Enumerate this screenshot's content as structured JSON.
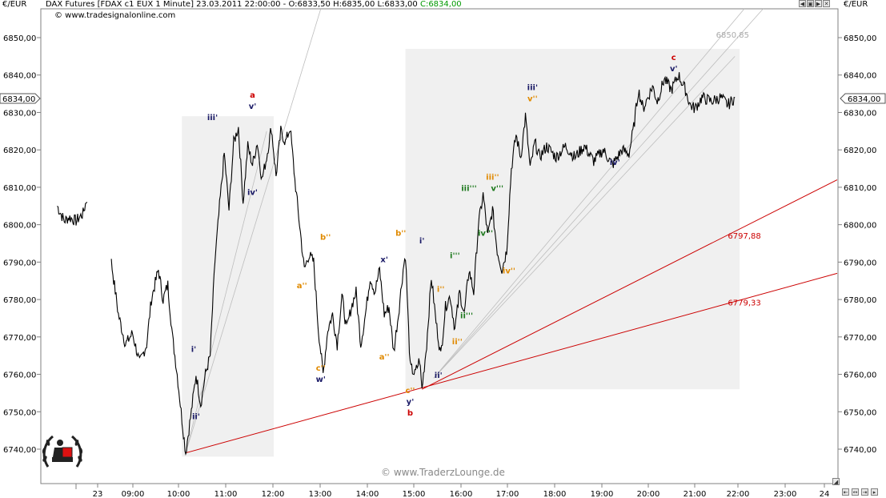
{
  "header": {
    "currency": "€/EUR",
    "instrument": "DAX Futures [FDAX c1 EUX  1 Minute] 23.03.2011 22:00:00 - O:6833,50 H:6835,00 L:6833,00",
    "close_text": "C:6834,00",
    "website": "© www.tradesignalonline.com",
    "currency_right": "€/EUR"
  },
  "watermark": "© www.TraderzLounge.de",
  "colors": {
    "price": "#000000",
    "trendline": "#cc0000",
    "fan": "#bdbdbd",
    "box": "#f0f0f0",
    "close_green": "#009900",
    "wave_orange": "#e08a00",
    "wave_navy": "#1a1a66",
    "wave_red": "#cc0000",
    "wave_green": "#1f7a1f"
  },
  "chart_data": {
    "type": "line",
    "y_axis_labels": [
      "6740,00",
      "6750,00",
      "6760,00",
      "6770,00",
      "6780,00",
      "6790,00",
      "6800,00",
      "6810,00",
      "6820,00",
      "6830,00",
      "6840,00",
      "6850,00"
    ],
    "x_axis_labels": [
      "23",
      "09:00",
      "10:00",
      "11:00",
      "12:00",
      "13:00",
      "14:00",
      "15:00",
      "16:00",
      "17:00",
      "18:00",
      "19:00",
      "20:00",
      "21:00",
      "22:00",
      "23:00",
      "24"
    ],
    "ylim": [
      6733,
      6860
    ],
    "last_price_label": "6834,00",
    "price_series": [
      {
        "t": 7.6,
        "p": 6805
      },
      {
        "t": 7.75,
        "p": 6801
      },
      {
        "t": 7.85,
        "p": 6802
      },
      {
        "t": 8.0,
        "p": 6801
      },
      {
        "t": 8.15,
        "p": 6803
      },
      {
        "t": 8.25,
        "p": 6808
      },
      {
        "t": 8.75,
        "p": 6790
      },
      {
        "t": 8.9,
        "p": 6776
      },
      {
        "t": 9.05,
        "p": 6768
      },
      {
        "t": 9.2,
        "p": 6771
      },
      {
        "t": 9.35,
        "p": 6763
      },
      {
        "t": 9.5,
        "p": 6768
      },
      {
        "t": 9.6,
        "p": 6780
      },
      {
        "t": 9.75,
        "p": 6788
      },
      {
        "t": 9.85,
        "p": 6780
      },
      {
        "t": 9.95,
        "p": 6784
      },
      {
        "t": 10.05,
        "p": 6770
      },
      {
        "t": 10.15,
        "p": 6760
      },
      {
        "t": 10.25,
        "p": 6748
      },
      {
        "t": 10.33,
        "p": 6739
      },
      {
        "t": 10.45,
        "p": 6750
      },
      {
        "t": 10.55,
        "p": 6760
      },
      {
        "t": 10.65,
        "p": 6752
      },
      {
        "t": 10.75,
        "p": 6760
      },
      {
        "t": 10.85,
        "p": 6765
      },
      {
        "t": 10.95,
        "p": 6790
      },
      {
        "t": 11.05,
        "p": 6805
      },
      {
        "t": 11.15,
        "p": 6819
      },
      {
        "t": 11.25,
        "p": 6804
      },
      {
        "t": 11.35,
        "p": 6822
      },
      {
        "t": 11.45,
        "p": 6826
      },
      {
        "t": 11.55,
        "p": 6806
      },
      {
        "t": 11.65,
        "p": 6821
      },
      {
        "t": 11.75,
        "p": 6816
      },
      {
        "t": 11.85,
        "p": 6822
      },
      {
        "t": 11.95,
        "p": 6812
      },
      {
        "t": 12.05,
        "p": 6818
      },
      {
        "t": 12.15,
        "p": 6826
      },
      {
        "t": 12.25,
        "p": 6813
      },
      {
        "t": 12.35,
        "p": 6825
      },
      {
        "t": 12.45,
        "p": 6822
      },
      {
        "t": 12.55,
        "p": 6826
      },
      {
        "t": 12.65,
        "p": 6812
      },
      {
        "t": 12.75,
        "p": 6800
      },
      {
        "t": 12.85,
        "p": 6788
      },
      {
        "t": 12.95,
        "p": 6792
      },
      {
        "t": 13.05,
        "p": 6790
      },
      {
        "t": 13.15,
        "p": 6772
      },
      {
        "t": 13.25,
        "p": 6760
      },
      {
        "t": 13.35,
        "p": 6772
      },
      {
        "t": 13.45,
        "p": 6776
      },
      {
        "t": 13.55,
        "p": 6768
      },
      {
        "t": 13.65,
        "p": 6781
      },
      {
        "t": 13.75,
        "p": 6772
      },
      {
        "t": 13.85,
        "p": 6778
      },
      {
        "t": 13.95,
        "p": 6782
      },
      {
        "t": 14.05,
        "p": 6768
      },
      {
        "t": 14.15,
        "p": 6776
      },
      {
        "t": 14.25,
        "p": 6786
      },
      {
        "t": 14.35,
        "p": 6782
      },
      {
        "t": 14.45,
        "p": 6788
      },
      {
        "t": 14.55,
        "p": 6776
      },
      {
        "t": 14.65,
        "p": 6778
      },
      {
        "t": 14.75,
        "p": 6766
      },
      {
        "t": 14.85,
        "p": 6776
      },
      {
        "t": 14.95,
        "p": 6788
      },
      {
        "t": 15.0,
        "p": 6792
      },
      {
        "t": 15.1,
        "p": 6762
      },
      {
        "t": 15.2,
        "p": 6760
      },
      {
        "t": 15.3,
        "p": 6764
      },
      {
        "t": 15.35,
        "p": 6756
      },
      {
        "t": 15.45,
        "p": 6768
      },
      {
        "t": 15.55,
        "p": 6786
      },
      {
        "t": 15.65,
        "p": 6774
      },
      {
        "t": 15.75,
        "p": 6765
      },
      {
        "t": 15.85,
        "p": 6778
      },
      {
        "t": 15.95,
        "p": 6781
      },
      {
        "t": 16.05,
        "p": 6772
      },
      {
        "t": 16.15,
        "p": 6782
      },
      {
        "t": 16.25,
        "p": 6776
      },
      {
        "t": 16.35,
        "p": 6788
      },
      {
        "t": 16.45,
        "p": 6782
      },
      {
        "t": 16.55,
        "p": 6800
      },
      {
        "t": 16.65,
        "p": 6808
      },
      {
        "t": 16.75,
        "p": 6797
      },
      {
        "t": 16.85,
        "p": 6804
      },
      {
        "t": 16.95,
        "p": 6793
      },
      {
        "t": 17.05,
        "p": 6788
      },
      {
        "t": 17.15,
        "p": 6793
      },
      {
        "t": 17.25,
        "p": 6815
      },
      {
        "t": 17.35,
        "p": 6824
      },
      {
        "t": 17.45,
        "p": 6818
      },
      {
        "t": 17.55,
        "p": 6829
      },
      {
        "t": 17.65,
        "p": 6815
      },
      {
        "t": 17.75,
        "p": 6822
      },
      {
        "t": 17.85,
        "p": 6818
      },
      {
        "t": 18.0,
        "p": 6821
      },
      {
        "t": 18.2,
        "p": 6818
      },
      {
        "t": 18.4,
        "p": 6821
      },
      {
        "t": 18.6,
        "p": 6818
      },
      {
        "t": 18.8,
        "p": 6821
      },
      {
        "t": 19.0,
        "p": 6817
      },
      {
        "t": 19.2,
        "p": 6820
      },
      {
        "t": 19.4,
        "p": 6816
      },
      {
        "t": 19.6,
        "p": 6820
      },
      {
        "t": 19.75,
        "p": 6819
      },
      {
        "t": 19.85,
        "p": 6826
      },
      {
        "t": 19.95,
        "p": 6836
      },
      {
        "t": 20.05,
        "p": 6831
      },
      {
        "t": 20.15,
        "p": 6834
      },
      {
        "t": 20.25,
        "p": 6837
      },
      {
        "t": 20.35,
        "p": 6833
      },
      {
        "t": 20.5,
        "p": 6839
      },
      {
        "t": 20.65,
        "p": 6836
      },
      {
        "t": 20.8,
        "p": 6840
      },
      {
        "t": 20.95,
        "p": 6836
      },
      {
        "t": 21.05,
        "p": 6832
      },
      {
        "t": 21.15,
        "p": 6831
      },
      {
        "t": 21.3,
        "p": 6834
      },
      {
        "t": 21.5,
        "p": 6833
      },
      {
        "t": 21.7,
        "p": 6834
      },
      {
        "t": 21.85,
        "p": 6832
      },
      {
        "t": 22.0,
        "p": 6834
      }
    ],
    "trendlines": [
      {
        "label": "6797,88",
        "from": {
          "t": 15.35,
          "p": 6756
        },
        "to": {
          "t": 24.2,
          "p": 6812
        }
      },
      {
        "label": "6779,33",
        "from": {
          "t": 10.33,
          "p": 6739
        },
        "to": {
          "t": 24.2,
          "p": 6787
        }
      }
    ],
    "fan_lines": [
      {
        "from": {
          "t": 10.33,
          "p": 6739
        },
        "to": {
          "t": 13.2,
          "p": 6860
        }
      },
      {
        "from": {
          "t": 10.33,
          "p": 6739
        },
        "to": {
          "t": 12.05,
          "p": 6825
        }
      },
      {
        "from": {
          "t": 15.6,
          "p": 6759
        },
        "to": {
          "t": 22.2,
          "p": 6860
        }
      },
      {
        "from": {
          "t": 15.6,
          "p": 6759
        },
        "to": {
          "t": 22.6,
          "p": 6860
        }
      },
      {
        "from": {
          "t": 15.6,
          "p": 6759
        },
        "to": {
          "t": 22.0,
          "p": 6845
        }
      }
    ],
    "level_label": {
      "text": "6850,85",
      "t": 21.6,
      "p": 6850.85
    },
    "boxes": [
      {
        "t0": 10.25,
        "t1": 12.2,
        "p0": 6738,
        "p1": 6829
      },
      {
        "t0": 15.0,
        "t1": 22.1,
        "p0": 6756,
        "p1": 6847
      }
    ],
    "wave_labels": [
      {
        "text": "a",
        "t": 11.75,
        "p": 6834,
        "color": "red"
      },
      {
        "text": "v'",
        "t": 11.75,
        "p": 6831,
        "color": "navy"
      },
      {
        "text": "iii'",
        "t": 10.9,
        "p": 6828,
        "color": "navy"
      },
      {
        "text": "iv'",
        "t": 11.75,
        "p": 6808,
        "color": "navy"
      },
      {
        "text": "i'",
        "t": 10.5,
        "p": 6766,
        "color": "navy"
      },
      {
        "text": "ii'",
        "t": 10.55,
        "p": 6748,
        "color": "navy"
      },
      {
        "text": "b''",
        "t": 13.3,
        "p": 6796,
        "color": "orange"
      },
      {
        "text": "a''",
        "t": 12.8,
        "p": 6783,
        "color": "orange"
      },
      {
        "text": "c''",
        "t": 13.2,
        "p": 6761,
        "color": "orange"
      },
      {
        "text": "w'",
        "t": 13.2,
        "p": 6758,
        "color": "navy"
      },
      {
        "text": "x'",
        "t": 14.55,
        "p": 6790,
        "color": "navy"
      },
      {
        "text": "a''",
        "t": 14.55,
        "p": 6764,
        "color": "orange"
      },
      {
        "text": "b''",
        "t": 14.9,
        "p": 6797,
        "color": "orange"
      },
      {
        "text": "c''",
        "t": 15.1,
        "p": 6755,
        "color": "orange"
      },
      {
        "text": "y'",
        "t": 15.1,
        "p": 6752,
        "color": "navy"
      },
      {
        "text": "b",
        "t": 15.1,
        "p": 6749,
        "color": "red"
      },
      {
        "text": "i'",
        "t": 15.35,
        "p": 6795,
        "color": "navy"
      },
      {
        "text": "ii'",
        "t": 15.7,
        "p": 6759,
        "color": "navy"
      },
      {
        "text": "i''",
        "t": 15.75,
        "p": 6782,
        "color": "orange"
      },
      {
        "text": "ii''",
        "t": 16.1,
        "p": 6768,
        "color": "orange"
      },
      {
        "text": "i'''",
        "t": 16.05,
        "p": 6791,
        "color": "green"
      },
      {
        "text": "ii'''",
        "t": 16.3,
        "p": 6775,
        "color": "green"
      },
      {
        "text": "iii'''",
        "t": 16.35,
        "p": 6809,
        "color": "green"
      },
      {
        "text": "iv'''",
        "t": 16.7,
        "p": 6797,
        "color": "green"
      },
      {
        "text": "v'''",
        "t": 16.95,
        "p": 6809,
        "color": "green"
      },
      {
        "text": "iii''",
        "t": 16.85,
        "p": 6812,
        "color": "orange"
      },
      {
        "text": "iv''",
        "t": 17.2,
        "p": 6787,
        "color": "orange"
      },
      {
        "text": "iii'",
        "t": 17.7,
        "p": 6836,
        "color": "navy"
      },
      {
        "text": "v''",
        "t": 17.7,
        "p": 6833,
        "color": "orange"
      },
      {
        "text": "iv'",
        "t": 19.45,
        "p": 6816,
        "color": "navy"
      },
      {
        "text": "c",
        "t": 20.7,
        "p": 6844,
        "color": "red"
      },
      {
        "text": "v'",
        "t": 20.7,
        "p": 6841,
        "color": "navy"
      }
    ]
  }
}
